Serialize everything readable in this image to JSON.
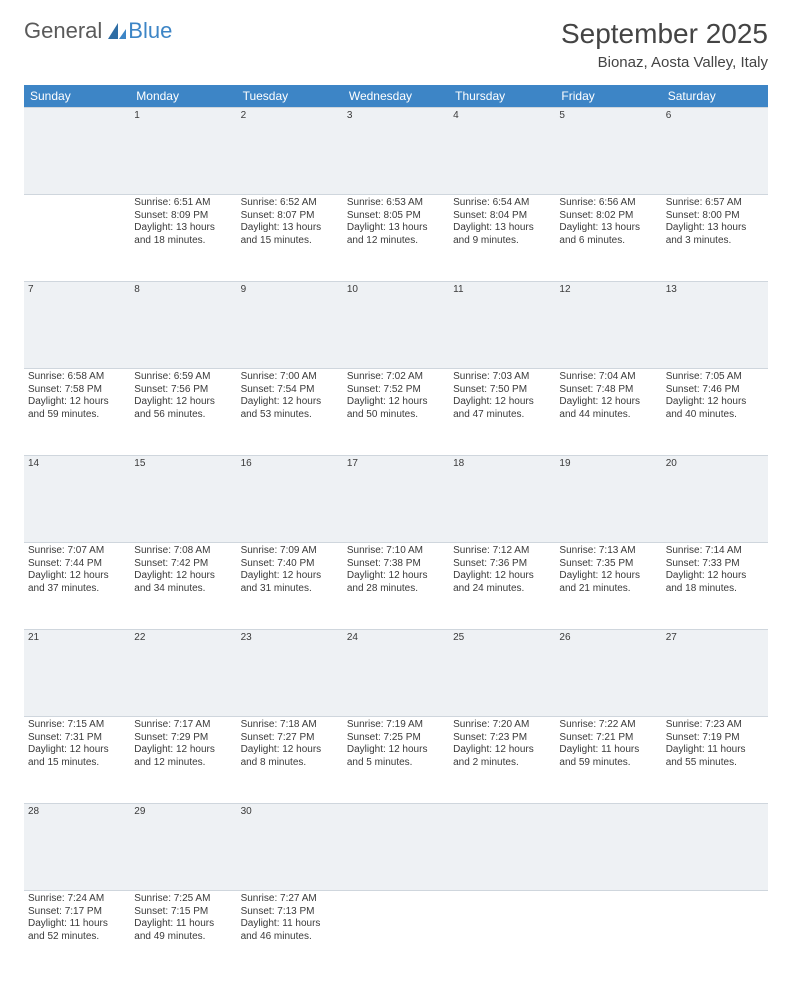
{
  "brand": {
    "word1": "General",
    "word2": "Blue"
  },
  "title": "September 2025",
  "location": "Bionaz, Aosta Valley, Italy",
  "colors": {
    "header_bg": "#3d85c6",
    "header_fg": "#ffffff",
    "daynum_bg": "#eef1f4",
    "border": "#cfd6dd",
    "text": "#3a3a3a",
    "page_bg": "#ffffff"
  },
  "weekdays": [
    "Sunday",
    "Monday",
    "Tuesday",
    "Wednesday",
    "Thursday",
    "Friday",
    "Saturday"
  ],
  "start_offset": 1,
  "days": [
    {
      "n": 1,
      "sunrise": "6:51 AM",
      "sunset": "8:09 PM",
      "daylight": "13 hours and 18 minutes."
    },
    {
      "n": 2,
      "sunrise": "6:52 AM",
      "sunset": "8:07 PM",
      "daylight": "13 hours and 15 minutes."
    },
    {
      "n": 3,
      "sunrise": "6:53 AM",
      "sunset": "8:05 PM",
      "daylight": "13 hours and 12 minutes."
    },
    {
      "n": 4,
      "sunrise": "6:54 AM",
      "sunset": "8:04 PM",
      "daylight": "13 hours and 9 minutes."
    },
    {
      "n": 5,
      "sunrise": "6:56 AM",
      "sunset": "8:02 PM",
      "daylight": "13 hours and 6 minutes."
    },
    {
      "n": 6,
      "sunrise": "6:57 AM",
      "sunset": "8:00 PM",
      "daylight": "13 hours and 3 minutes."
    },
    {
      "n": 7,
      "sunrise": "6:58 AM",
      "sunset": "7:58 PM",
      "daylight": "12 hours and 59 minutes."
    },
    {
      "n": 8,
      "sunrise": "6:59 AM",
      "sunset": "7:56 PM",
      "daylight": "12 hours and 56 minutes."
    },
    {
      "n": 9,
      "sunrise": "7:00 AM",
      "sunset": "7:54 PM",
      "daylight": "12 hours and 53 minutes."
    },
    {
      "n": 10,
      "sunrise": "7:02 AM",
      "sunset": "7:52 PM",
      "daylight": "12 hours and 50 minutes."
    },
    {
      "n": 11,
      "sunrise": "7:03 AM",
      "sunset": "7:50 PM",
      "daylight": "12 hours and 47 minutes."
    },
    {
      "n": 12,
      "sunrise": "7:04 AM",
      "sunset": "7:48 PM",
      "daylight": "12 hours and 44 minutes."
    },
    {
      "n": 13,
      "sunrise": "7:05 AM",
      "sunset": "7:46 PM",
      "daylight": "12 hours and 40 minutes."
    },
    {
      "n": 14,
      "sunrise": "7:07 AM",
      "sunset": "7:44 PM",
      "daylight": "12 hours and 37 minutes."
    },
    {
      "n": 15,
      "sunrise": "7:08 AM",
      "sunset": "7:42 PM",
      "daylight": "12 hours and 34 minutes."
    },
    {
      "n": 16,
      "sunrise": "7:09 AM",
      "sunset": "7:40 PM",
      "daylight": "12 hours and 31 minutes."
    },
    {
      "n": 17,
      "sunrise": "7:10 AM",
      "sunset": "7:38 PM",
      "daylight": "12 hours and 28 minutes."
    },
    {
      "n": 18,
      "sunrise": "7:12 AM",
      "sunset": "7:36 PM",
      "daylight": "12 hours and 24 minutes."
    },
    {
      "n": 19,
      "sunrise": "7:13 AM",
      "sunset": "7:35 PM",
      "daylight": "12 hours and 21 minutes."
    },
    {
      "n": 20,
      "sunrise": "7:14 AM",
      "sunset": "7:33 PM",
      "daylight": "12 hours and 18 minutes."
    },
    {
      "n": 21,
      "sunrise": "7:15 AM",
      "sunset": "7:31 PM",
      "daylight": "12 hours and 15 minutes."
    },
    {
      "n": 22,
      "sunrise": "7:17 AM",
      "sunset": "7:29 PM",
      "daylight": "12 hours and 12 minutes."
    },
    {
      "n": 23,
      "sunrise": "7:18 AM",
      "sunset": "7:27 PM",
      "daylight": "12 hours and 8 minutes."
    },
    {
      "n": 24,
      "sunrise": "7:19 AM",
      "sunset": "7:25 PM",
      "daylight": "12 hours and 5 minutes."
    },
    {
      "n": 25,
      "sunrise": "7:20 AM",
      "sunset": "7:23 PM",
      "daylight": "12 hours and 2 minutes."
    },
    {
      "n": 26,
      "sunrise": "7:22 AM",
      "sunset": "7:21 PM",
      "daylight": "11 hours and 59 minutes."
    },
    {
      "n": 27,
      "sunrise": "7:23 AM",
      "sunset": "7:19 PM",
      "daylight": "11 hours and 55 minutes."
    },
    {
      "n": 28,
      "sunrise": "7:24 AM",
      "sunset": "7:17 PM",
      "daylight": "11 hours and 52 minutes."
    },
    {
      "n": 29,
      "sunrise": "7:25 AM",
      "sunset": "7:15 PM",
      "daylight": "11 hours and 49 minutes."
    },
    {
      "n": 30,
      "sunrise": "7:27 AM",
      "sunset": "7:13 PM",
      "daylight": "11 hours and 46 minutes."
    }
  ]
}
